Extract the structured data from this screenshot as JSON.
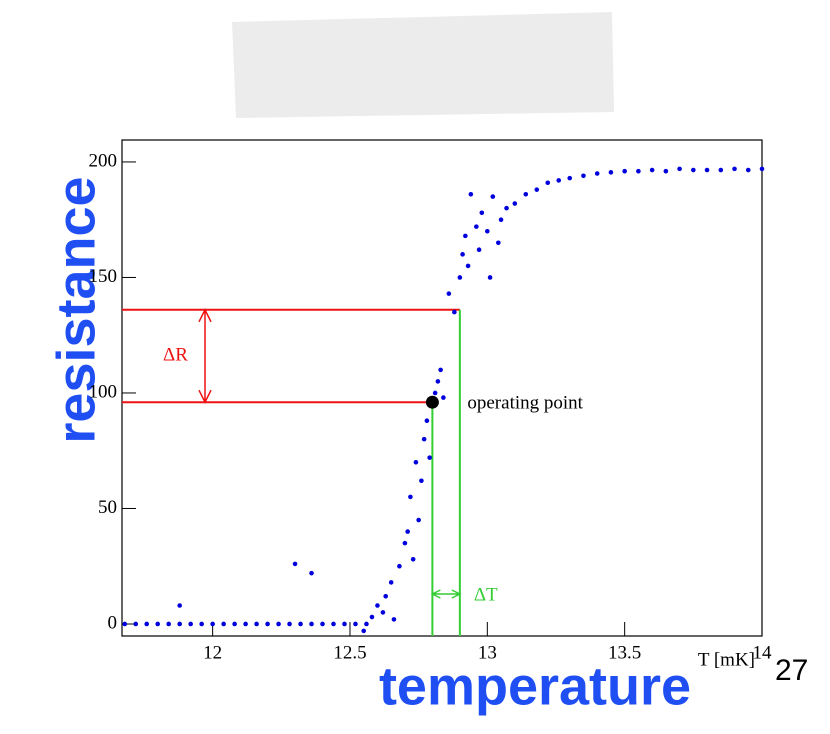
{
  "chart_data": {
    "type": "scatter",
    "x_label": "T [mK]",
    "x": [
      11.68,
      11.72,
      11.76,
      11.8,
      11.84,
      11.88,
      11.92,
      11.96,
      12.0,
      12.04,
      12.08,
      12.12,
      12.16,
      12.2,
      12.24,
      12.28,
      12.32,
      12.36,
      12.4,
      12.44,
      12.48,
      12.52,
      12.56,
      11.88,
      12.3,
      12.36,
      12.55,
      12.58,
      12.6,
      12.62,
      12.63,
      12.65,
      12.66,
      12.68,
      12.7,
      12.71,
      12.72,
      12.73,
      12.74,
      12.75,
      12.76,
      12.77,
      12.78,
      12.79,
      12.81,
      12.82,
      12.83,
      12.84,
      12.86,
      12.88,
      12.9,
      12.91,
      12.92,
      12.93,
      12.94,
      12.96,
      12.97,
      12.98,
      13.0,
      13.01,
      13.02,
      13.04,
      13.05,
      13.07,
      13.1,
      13.14,
      13.18,
      13.22,
      13.26,
      13.3,
      13.35,
      13.4,
      13.45,
      13.5,
      13.55,
      13.6,
      13.65,
      13.7,
      13.75,
      13.8,
      13.85,
      13.9,
      13.95,
      14.0
    ],
    "values": [
      0,
      0,
      0,
      0,
      0,
      0,
      0,
      0,
      0,
      0,
      0,
      0,
      0,
      0,
      0,
      0,
      0,
      0,
      0,
      0,
      0,
      0,
      0,
      8,
      26,
      22,
      -3,
      3,
      8,
      5,
      12,
      18,
      2,
      25,
      35,
      40,
      55,
      28,
      70,
      45,
      62,
      80,
      88,
      72,
      100,
      105,
      110,
      98,
      143,
      135,
      150,
      160,
      168,
      155,
      186,
      172,
      162,
      178,
      170,
      150,
      185,
      165,
      175,
      180,
      182,
      186,
      188,
      191,
      192,
      193,
      194,
      195,
      195.5,
      196,
      196,
      196.5,
      196,
      197,
      196.5,
      196.5,
      196.5,
      197,
      196.5,
      197
    ],
    "color": "#0000dd",
    "xlim": [
      11.67,
      14.0
    ],
    "ylim": [
      -5.2,
      209.5
    ],
    "xticks": [
      12,
      12.5,
      13,
      13.5,
      14
    ],
    "yticks": [
      0,
      50,
      100,
      150,
      200
    ],
    "hlines": [
      96,
      136
    ],
    "hline_color": "#ee1111",
    "vlines": [
      12.8,
      12.9
    ],
    "vline_color": "#33cc33",
    "operating_point": {
      "x": 12.8,
      "y": 96,
      "label": "operating point"
    },
    "delta_r_label": "ΔR",
    "delta_t_label": "ΔT"
  },
  "overlay": {
    "resistance": "resistance",
    "temperature": "temperature",
    "page_number": "27"
  }
}
